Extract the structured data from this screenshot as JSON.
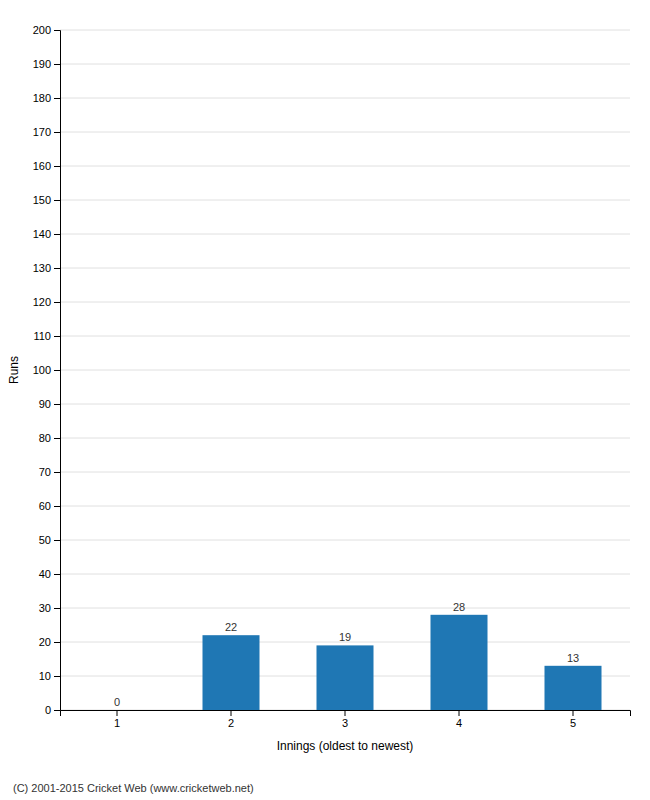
{
  "chart_data": {
    "type": "bar",
    "categories": [
      "1",
      "2",
      "3",
      "4",
      "5"
    ],
    "values": [
      0,
      22,
      19,
      28,
      13
    ],
    "xlabel": "Innings (oldest to newest)",
    "ylabel": "Runs",
    "ylim": [
      0,
      200
    ],
    "yticks": [
      0,
      10,
      20,
      30,
      40,
      50,
      60,
      70,
      80,
      90,
      100,
      110,
      120,
      130,
      140,
      150,
      160,
      170,
      180,
      190,
      200
    ],
    "grid": true,
    "data_labels": true,
    "annotations": [
      "(C) 2001-2015 Cricket Web (www.cricketweb.net)"
    ]
  }
}
